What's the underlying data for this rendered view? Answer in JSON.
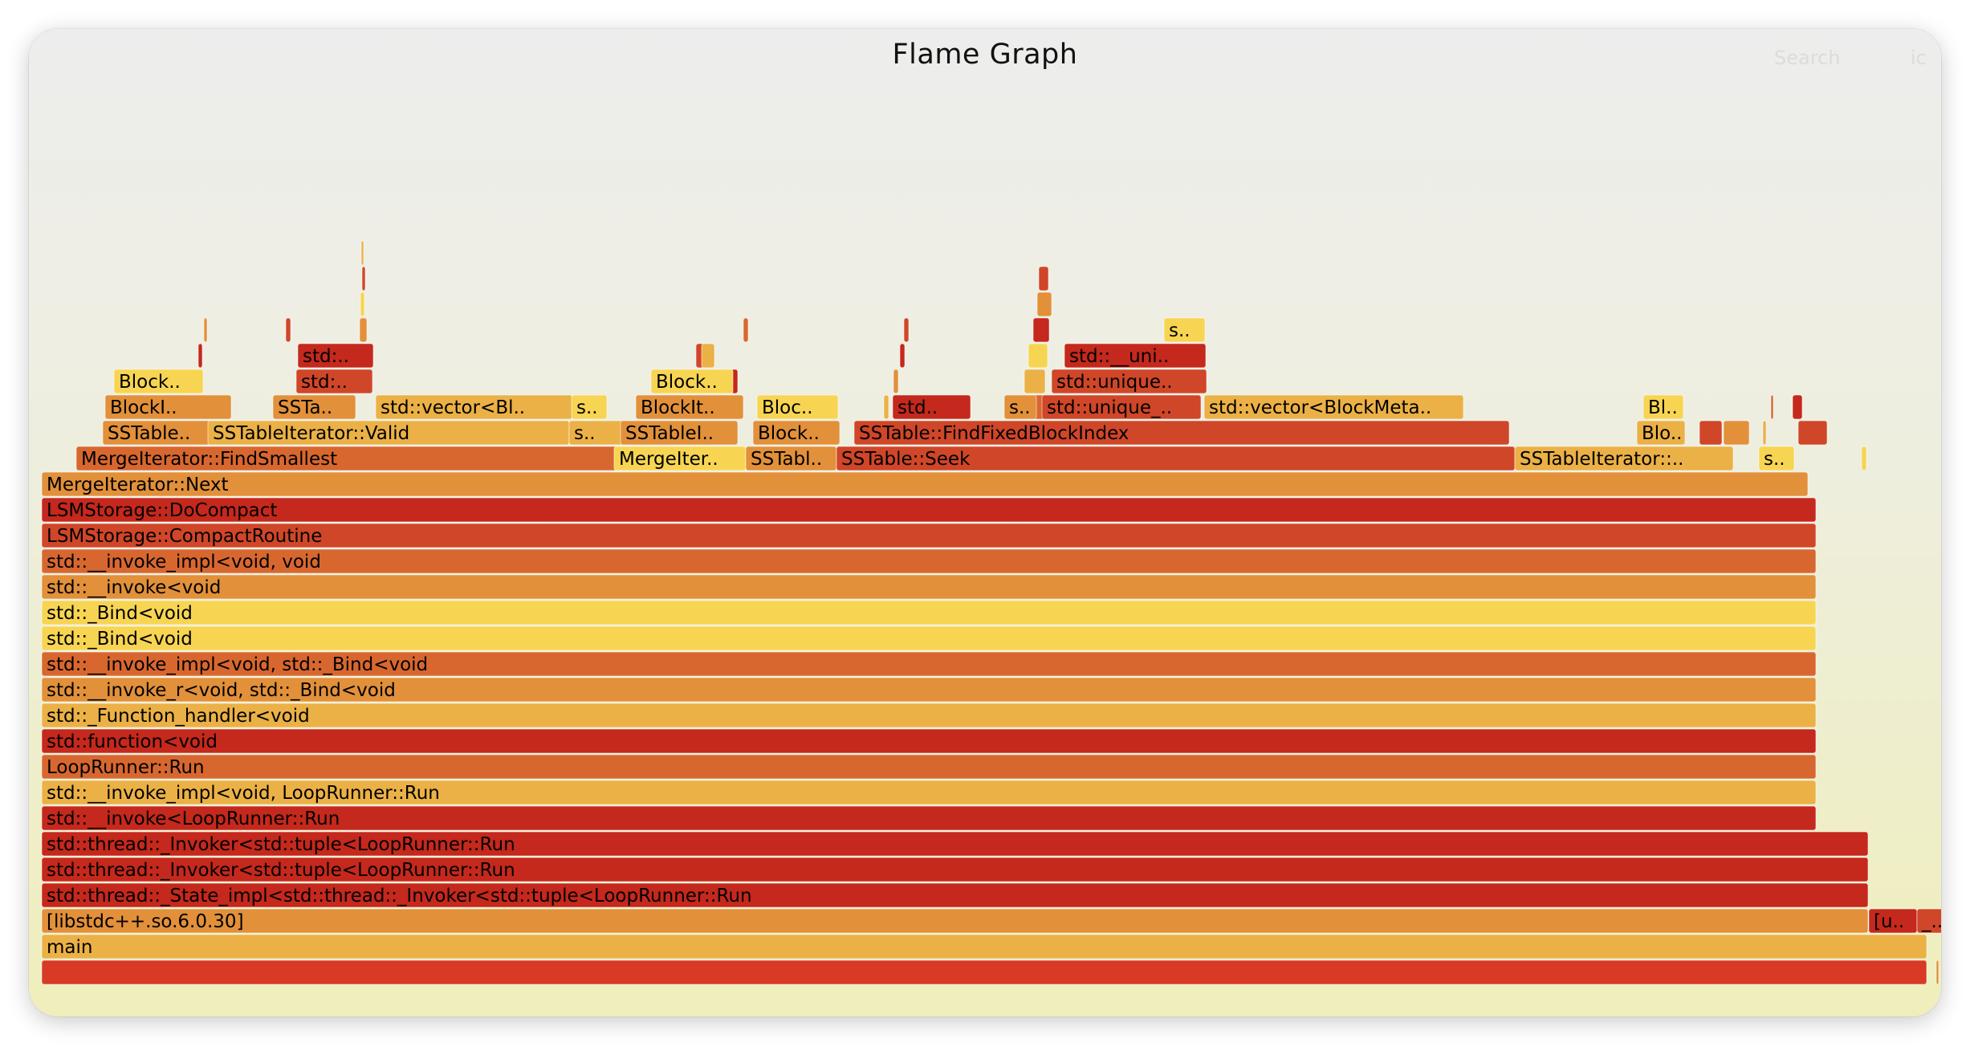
{
  "header": {
    "title": "Flame Graph",
    "search_label": "Search",
    "ic_label": "ic"
  },
  "palette": {
    "dark_red": "#c5281c",
    "red": "#d04628",
    "orange": "#d8672f",
    "light_orange": "#e2903a",
    "amber": "#ebb146",
    "yellow": "#f7d552",
    "root": "#d83a26"
  },
  "frames": [
    {
      "name": "",
      "color": "root"
    },
    {
      "name": "main",
      "color": "amber"
    },
    {
      "name": "[libstdc++.so.6.0.30]",
      "color": "light_orange"
    },
    {
      "name": "[u..",
      "color": "dark_red"
    },
    {
      "name": "_..",
      "color": "red"
    },
    {
      "name": "std::thread::_State_impl<std::thread::_Invoker<std::tuple<LoopRunner::Run",
      "color": "dark_red"
    },
    {
      "name": "std::thread::_Invoker<std::tuple<LoopRunner::Run",
      "color": "dark_red"
    },
    {
      "name": "std::thread::_Invoker<std::tuple<LoopRunner::Run",
      "color": "dark_red"
    },
    {
      "name": "std::__invoke<LoopRunner::Run",
      "color": "dark_red"
    },
    {
      "name": "std::__invoke_impl<void, LoopRunner::Run",
      "color": "amber"
    },
    {
      "name": "LoopRunner::Run",
      "color": "orange"
    },
    {
      "name": "std::function<void",
      "color": "dark_red"
    },
    {
      "name": "std::_Function_handler<void",
      "color": "amber"
    },
    {
      "name": "std::__invoke_r<void, std::_Bind<void",
      "color": "light_orange"
    },
    {
      "name": "std::__invoke_impl<void, std::_Bind<void",
      "color": "orange"
    },
    {
      "name": "std::_Bind<void",
      "color": "yellow"
    },
    {
      "name": "std::_Bind<void",
      "color": "yellow"
    },
    {
      "name": "std::__invoke<void",
      "color": "light_orange"
    },
    {
      "name": "std::__invoke_impl<void, void",
      "color": "orange"
    },
    {
      "name": "LSMStorage::CompactRoutine",
      "color": "red"
    },
    {
      "name": "LSMStorage::DoCompact",
      "color": "dark_red"
    },
    {
      "name": "MergeIterator::Next",
      "color": "light_orange"
    },
    {
      "name": "MergeIterator::FindSmallest",
      "color": "orange"
    },
    {
      "name": "MergeIter..",
      "color": "yellow"
    },
    {
      "name": "SSTabl..",
      "color": "light_orange"
    },
    {
      "name": "SSTable::Seek",
      "color": "red"
    },
    {
      "name": "SSTableIterator::..",
      "color": "amber"
    },
    {
      "name": "s..",
      "color": "yellow"
    },
    {
      "name": "SSTable..",
      "color": "light_orange"
    },
    {
      "name": "SSTableIterator::Valid",
      "color": "amber"
    },
    {
      "name": "s..",
      "color": "amber"
    },
    {
      "name": "SSTableI..",
      "color": "light_orange"
    },
    {
      "name": "Block..",
      "color": "light_orange"
    },
    {
      "name": "SSTable::FindFixedBlockIndex",
      "color": "red"
    },
    {
      "name": "Blo..",
      "color": "amber"
    },
    {
      "name": "BlockI..",
      "color": "light_orange"
    },
    {
      "name": "SSTa..",
      "color": "light_orange"
    },
    {
      "name": "std::vector<Bl..",
      "color": "amber"
    },
    {
      "name": "s..",
      "color": "yellow"
    },
    {
      "name": "BlockIt..",
      "color": "light_orange"
    },
    {
      "name": "Bloc..",
      "color": "yellow"
    },
    {
      "name": "std..",
      "color": "dark_red"
    },
    {
      "name": "s..",
      "color": "light_orange"
    },
    {
      "name": "std::unique_..",
      "color": "red"
    },
    {
      "name": "std::vector<BlockMeta..",
      "color": "amber"
    },
    {
      "name": "Bl..",
      "color": "yellow"
    },
    {
      "name": "Block..",
      "color": "yellow"
    },
    {
      "name": "std:..",
      "color": "red"
    },
    {
      "name": "Block..",
      "color": "yellow"
    },
    {
      "name": "std::unique..",
      "color": "red"
    },
    {
      "name": "std:..",
      "color": "dark_red"
    },
    {
      "name": "std::__uni..",
      "color": "dark_red"
    },
    {
      "name": "s..",
      "color": "yellow"
    }
  ],
  "slivers": [
    {
      "color": "dark_red"
    },
    {
      "color": "light_orange"
    },
    {
      "color": "amber"
    },
    {
      "color": "red"
    },
    {
      "color": "dark_red"
    },
    {
      "color": "light_orange"
    },
    {
      "color": "yellow"
    },
    {
      "color": "red"
    },
    {
      "color": "amber"
    },
    {
      "color": "dark_red"
    },
    {
      "color": "orange"
    },
    {
      "color": "yellow"
    },
    {
      "color": "red"
    },
    {
      "color": "light_orange"
    },
    {
      "color": "amber"
    },
    {
      "color": "dark_red"
    },
    {
      "color": "orange"
    },
    {
      "color": "red"
    },
    {
      "color": "yellow"
    },
    {
      "color": "amber"
    },
    {
      "color": "light_orange"
    },
    {
      "color": "dark_red"
    },
    {
      "color": "red"
    },
    {
      "color": "orange"
    },
    {
      "color": "amber"
    },
    {
      "color": "yellow"
    },
    {
      "color": "dark_red"
    },
    {
      "color": "light_orange"
    },
    {
      "color": "red"
    },
    {
      "color": "amber"
    },
    {
      "color": "orange"
    },
    {
      "color": "yellow"
    },
    {
      "color": "dark_red"
    },
    {
      "color": "red"
    },
    {
      "color": "light_orange"
    },
    {
      "color": "amber"
    },
    {
      "color": "orange"
    },
    {
      "color": "red"
    },
    {
      "color": "dark_red"
    },
    {
      "color": "yellow"
    },
    {
      "color": "amber"
    },
    {
      "color": "light_orange"
    }
  ]
}
